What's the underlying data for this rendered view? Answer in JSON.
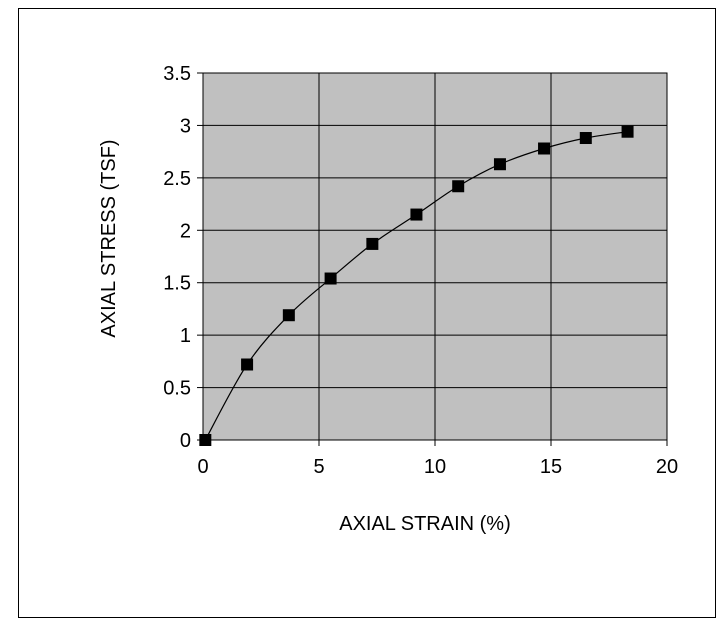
{
  "chart_data": {
    "type": "line",
    "xlabel": "AXIAL STRAIN (%)",
    "ylabel": "AXIAL STRESS (TSF)",
    "xlim": [
      0,
      20
    ],
    "ylim": [
      0,
      3.5
    ],
    "xticks": [
      0,
      5,
      10,
      15,
      20
    ],
    "yticks": [
      0,
      0.5,
      1,
      1.5,
      2,
      2.5,
      3,
      3.5
    ],
    "xtick_labels": [
      "0",
      "5",
      "10",
      "15",
      "20"
    ],
    "ytick_labels": [
      "0",
      "0.5",
      "1",
      "1.5",
      "2",
      "2.5",
      "3",
      "3.5"
    ],
    "grid": true,
    "plot_background": "#c0c0c0",
    "line_color": "#000000",
    "marker": "square",
    "series": [
      {
        "x": [
          0.1,
          1.9,
          3.7,
          5.5,
          7.3,
          9.2,
          11.0,
          12.8,
          14.7,
          16.5,
          18.3
        ],
        "y": [
          0.0,
          0.72,
          1.19,
          1.54,
          1.87,
          2.15,
          2.42,
          2.63,
          2.78,
          2.88,
          2.94
        ]
      }
    ]
  }
}
